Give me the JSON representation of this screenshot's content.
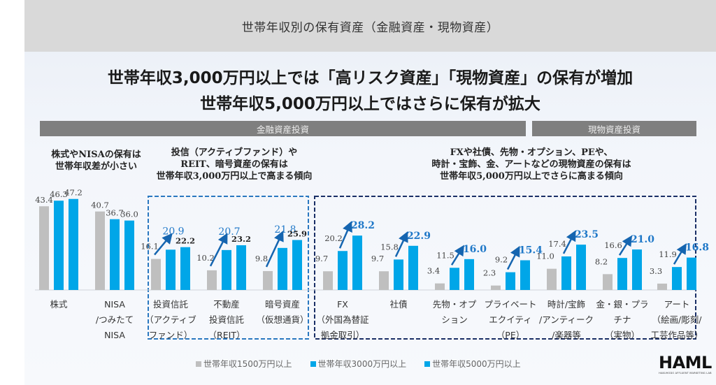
{
  "header": {
    "title": "世帯年収別の保有資産（金融資産・現物資産）"
  },
  "headline": {
    "line1": "世帯年収3,000万円以上では「高リスク資産」「現物資産」の保有が増加",
    "line2": "世帯年収5,000万円以上ではさらに保有が拡大"
  },
  "category_bars": {
    "financial": "金融資産投資",
    "physical": "現物資産投資"
  },
  "notes": {
    "left": [
      "株式やNISAの保有は",
      "世帯年収差が小さい"
    ],
    "middle": [
      "投信（アクティブファンド）や",
      "REIT、暗号資産の保有は",
      "世帯年収3,000万円以上で高まる傾向"
    ],
    "right": [
      "FXや社債、先物・オプション、PEや、",
      "時計・宝飾、金、アートなどの現物資産の保有は",
      "世帯年収5,000万円以上でさらに高まる傾向"
    ]
  },
  "colors": {
    "gray_series": "#bfbfbf",
    "blue_series": "#00a6e8",
    "accent_label": "#1f78c8",
    "arrow": "#1565b0",
    "box_middle": "#2a78c0",
    "box_right": "#1a2f66"
  },
  "legend": [
    {
      "label": "世帯年収1500万円以上",
      "color": "#bfbfbf"
    },
    {
      "label": "世帯年収3000万円以上",
      "color": "#00a6e8"
    },
    {
      "label": "世帯年収5000万円以上",
      "color": "#00a6e8"
    }
  ],
  "logo": {
    "name": "HAML",
    "subtitle": "HAKUHODO AFFLUENT MARKETING LAB"
  },
  "chart_data": {
    "type": "bar",
    "title": "世帯年収別の保有資産（金融資産・現物資産）",
    "xlabel": "",
    "ylabel": "",
    "ylim": [
      0,
      50
    ],
    "grid": false,
    "legend_position": "bottom",
    "categories": [
      [
        "株式"
      ],
      [
        "NISA",
        "/つみたて",
        "NISA"
      ],
      [
        "投資信託",
        "（アクティブ",
        "ファンド）"
      ],
      [
        "不動産",
        "投資信託",
        "（REIT）"
      ],
      [
        "暗号資産",
        "（仮想通貨）"
      ],
      [
        "FX",
        "（外国為替証",
        "拠金取引）"
      ],
      [
        "社債"
      ],
      [
        "先物・オプ",
        "ション"
      ],
      [
        "プライベート",
        "エクイティ",
        "（PE）"
      ],
      [
        "時計/宝飾",
        "/アンティーク",
        "/楽器等"
      ],
      [
        "金・銀・プラ",
        "チナ",
        "（実物）"
      ],
      [
        "アート",
        "（絵画/彫刻/",
        "工芸作品等）"
      ]
    ],
    "series": [
      {
        "name": "世帯年収1500万円以上",
        "values": [
          43.4,
          40.7,
          16.1,
          10.2,
          9.8,
          9.7,
          9.7,
          3.4,
          2.3,
          11.0,
          8.2,
          3.3
        ]
      },
      {
        "name": "世帯年収3000万円以上",
        "values": [
          46.3,
          36.7,
          20.9,
          20.7,
          21.8,
          20.2,
          15.8,
          11.5,
          9.2,
          17.4,
          16.6,
          11.9
        ]
      },
      {
        "name": "世帯年収5000万円以上",
        "values": [
          47.2,
          36.0,
          22.2,
          23.2,
          25.9,
          28.2,
          22.9,
          16.0,
          15.4,
          23.5,
          21.0,
          16.8
        ]
      }
    ],
    "highlighted_labels": {
      "series_index_1_categories": [
        2,
        3,
        4
      ],
      "series_index_2_categories": [
        5,
        6,
        7,
        8,
        9,
        10,
        11
      ]
    },
    "arrows": {
      "from_gray_to_3000": [
        2,
        3,
        4
      ],
      "from_3000_to_5000": [
        5,
        6,
        7,
        8,
        9,
        10,
        11
      ]
    },
    "groups": [
      {
        "label": "金融資産投資",
        "categories": [
          0,
          1,
          2,
          3,
          4,
          5,
          6,
          7,
          8
        ]
      },
      {
        "label": "現物資産投資",
        "categories": [
          9,
          10,
          11
        ]
      }
    ]
  }
}
